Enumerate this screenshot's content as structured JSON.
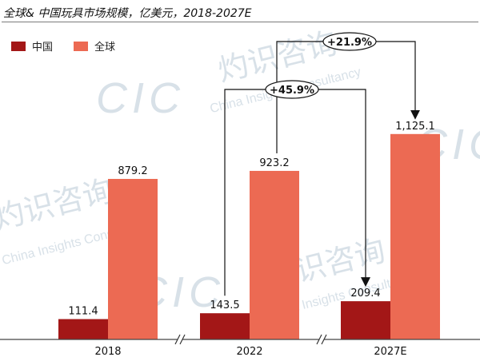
{
  "title": "全球& 中国玩具市场规模，亿美元，2018-2027E",
  "colors": {
    "china": "#a31717",
    "global": "#ec6a53",
    "axis": "#444444",
    "arrow": "#111111"
  },
  "legend": [
    {
      "label": "中国",
      "color": "#a31717"
    },
    {
      "label": "全球",
      "color": "#ec6a53"
    }
  ],
  "watermarks": [
    "CIC",
    "灼识咨询",
    "China Insights Consultancy"
  ],
  "chart_data": {
    "type": "bar",
    "categories": [
      "2018",
      "2022",
      "2027E"
    ],
    "series": [
      {
        "name": "中国",
        "values": [
          111.4,
          143.5,
          209.4
        ],
        "labels": [
          "111.4",
          "143.5",
          "209.4"
        ]
      },
      {
        "name": "全球",
        "values": [
          879.2,
          923.2,
          1125.1
        ],
        "labels": [
          "879.2",
          "923.2",
          "1,125.1"
        ]
      }
    ],
    "annotations": [
      {
        "text": "+21.9%",
        "series": "全球",
        "from": "2022",
        "to": "2027E"
      },
      {
        "text": "+45.9%",
        "series": "中国",
        "from": "2022",
        "to": "2027E"
      }
    ],
    "axis_breaks": [
      "2018-2022",
      "2022-2027E"
    ],
    "grid": false,
    "legend_position": "top-left"
  }
}
